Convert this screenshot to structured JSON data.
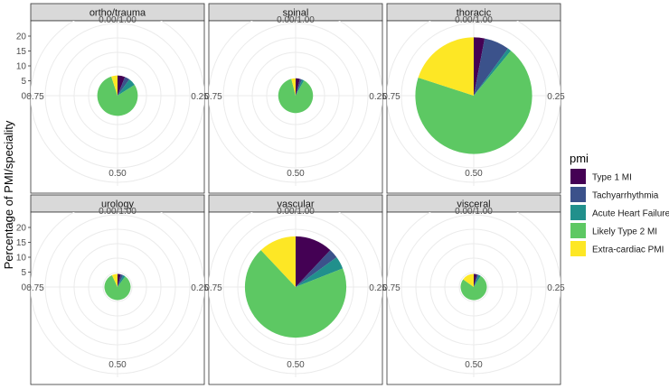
{
  "chart_data": {
    "type": "pie",
    "coord": "polar",
    "ylabel": "Percentage of PMI/speciality",
    "y_ticks": [
      0,
      5,
      10,
      15,
      20
    ],
    "angle_labels": [
      "0.00/1.00",
      "0.25",
      "0.50",
      "0.75"
    ],
    "legend": {
      "title": "pmi",
      "position": "right",
      "items": [
        {
          "label": "Type 1 MI",
          "color": "#440154"
        },
        {
          "label": "Tachyarrhythmia",
          "color": "#3B528B"
        },
        {
          "label": "Acute Heart Failure",
          "color": "#21908C"
        },
        {
          "label": "Likely Type 2 MI",
          "color": "#5DC863"
        },
        {
          "label": "Extra-cardiac PMI",
          "color": "#FDE725"
        }
      ]
    },
    "panels": [
      {
        "name": "ortho/trauma",
        "total": 7.1,
        "fractions": {
          "Type 1 MI": 0.06,
          "Tachyarrhythmia": 0.04,
          "Acute Heart Failure": 0.06,
          "Likely Type 2 MI": 0.79,
          "Extra-cardiac PMI": 0.05
        }
      },
      {
        "name": "spinal",
        "total": 6.1,
        "fractions": {
          "Type 1 MI": 0.04,
          "Tachyarrhythmia": 0.02,
          "Acute Heart Failure": 0.02,
          "Likely Type 2 MI": 0.88,
          "Extra-cardiac PMI": 0.04
        }
      },
      {
        "name": "thoracic",
        "total": 20.5,
        "fractions": {
          "Type 1 MI": 0.03,
          "Tachyarrhythmia": 0.07,
          "Acute Heart Failure": 0.01,
          "Likely Type 2 MI": 0.69,
          "Extra-cardiac PMI": 0.2
        }
      },
      {
        "name": "urology",
        "total": 4.6,
        "fractions": {
          "Type 1 MI": 0.04,
          "Tachyarrhythmia": 0.03,
          "Acute Heart Failure": 0.03,
          "Likely Type 2 MI": 0.83,
          "Extra-cardiac PMI": 0.07
        }
      },
      {
        "name": "vascular",
        "total": 17.8,
        "fractions": {
          "Type 1 MI": 0.12,
          "Tachyarrhythmia": 0.03,
          "Acute Heart Failure": 0.04,
          "Likely Type 2 MI": 0.69,
          "Extra-cardiac PMI": 0.12
        }
      },
      {
        "name": "visceral",
        "total": 4.6,
        "fractions": {
          "Type 1 MI": 0.04,
          "Tachyarrhythmia": 0.02,
          "Acute Heart Failure": 0.03,
          "Likely Type 2 MI": 0.76,
          "Extra-cardiac PMI": 0.15
        }
      }
    ]
  }
}
